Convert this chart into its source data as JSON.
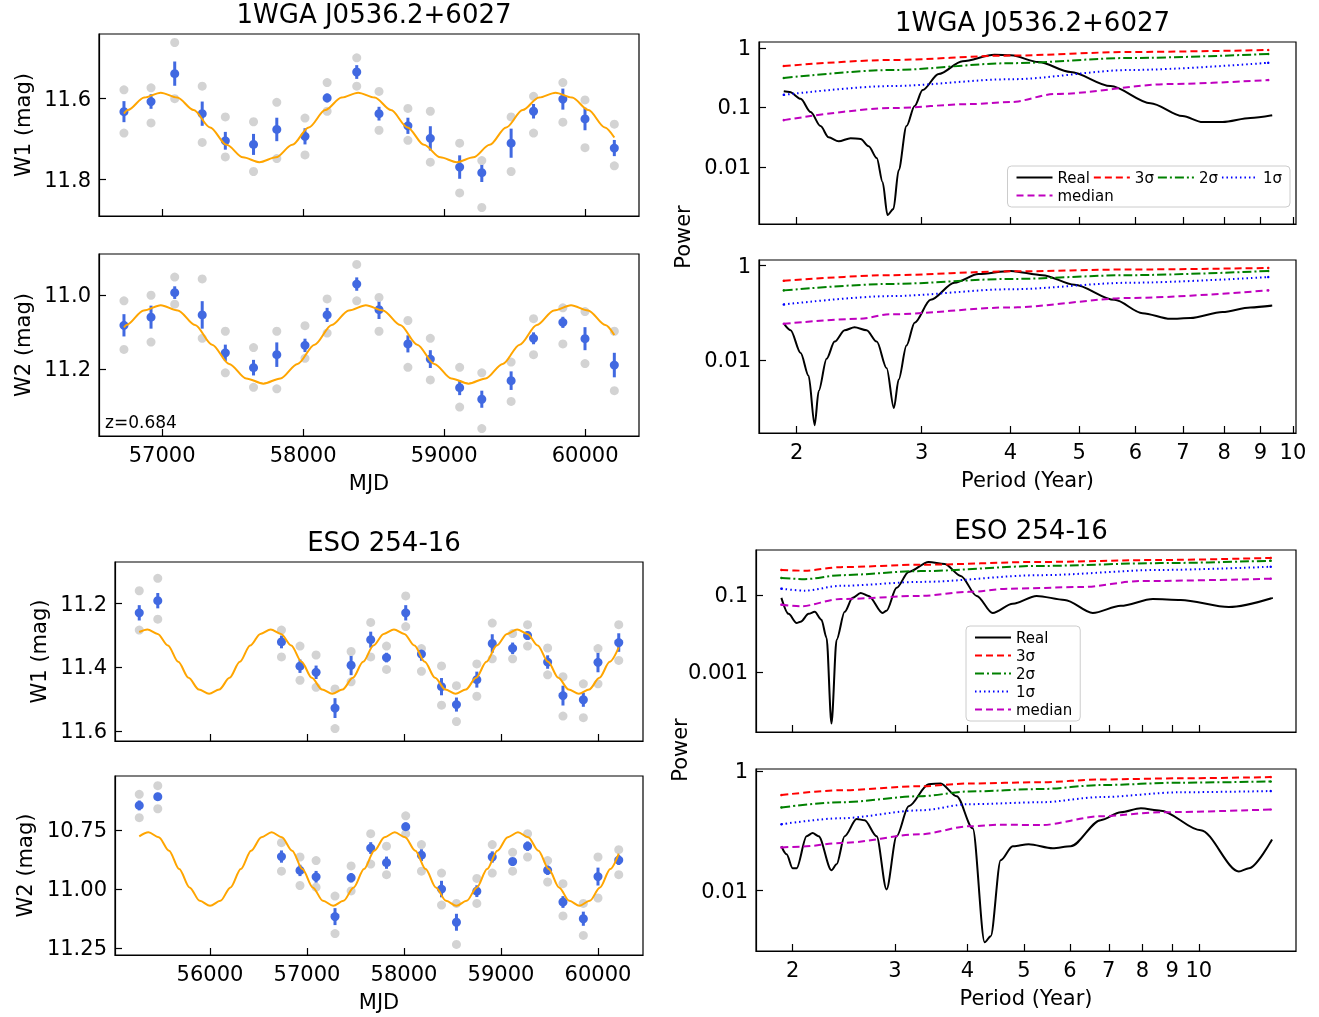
{
  "chart_data": [
    {
      "type": "scatter",
      "title": "1WGA J0536.2+6027",
      "ylabel": "W1 (mag)",
      "xlim": [
        56552,
        60382
      ],
      "ylim": [
        11.89,
        11.44
      ],
      "xticks": [
        57000,
        58000,
        59000,
        60000
      ],
      "yticks": [
        11.6,
        11.8
      ],
      "tick_labels": "y",
      "series": [
        {
          "color": "#d3d3d3",
          "marker": "circle",
          "x": [
            56729,
            56729,
            56921,
            56921,
            57089,
            57089,
            57284,
            57284,
            57448,
            57448,
            57648,
            57648,
            57813,
            57813,
            58013,
            58013,
            58170,
            58170,
            58380,
            58380,
            58538,
            58538,
            58743,
            58743,
            58902,
            58902,
            59110,
            59110,
            59267,
            59267,
            59475,
            59475,
            59634,
            59634,
            59842,
            59842,
            59999,
            59999,
            60207,
            60207
          ],
          "values": [
            11.578,
            11.685,
            11.573,
            11.66,
            11.461,
            11.6,
            11.569,
            11.708,
            11.645,
            11.744,
            11.657,
            11.78,
            11.609,
            11.748,
            11.648,
            11.739,
            11.56,
            11.631,
            11.499,
            11.569,
            11.582,
            11.678,
            11.624,
            11.703,
            11.631,
            11.757,
            11.71,
            11.833,
            11.753,
            11.869,
            11.645,
            11.78,
            11.594,
            11.685,
            11.56,
            11.658,
            11.603,
            11.721,
            11.663,
            11.766
          ]
        },
        {
          "type": "line",
          "color": "#ffa500",
          "marker": "none",
          "line_style": "solid",
          "x": [
            56729,
            56757,
            56873,
            56990,
            57107,
            57223,
            57340,
            57457,
            57573,
            57690,
            57807,
            57923,
            58040,
            58157,
            58273,
            58390,
            58507,
            58623,
            58740,
            58857,
            58973,
            59090,
            59207,
            59323,
            59440,
            59557,
            59673,
            59790,
            59907,
            60023,
            60140,
            60207
          ],
          "values": [
            11.637,
            11.628,
            11.597,
            11.585,
            11.597,
            11.628,
            11.671,
            11.714,
            11.745,
            11.757,
            11.745,
            11.714,
            11.671,
            11.628,
            11.597,
            11.585,
            11.597,
            11.628,
            11.671,
            11.714,
            11.745,
            11.757,
            11.745,
            11.714,
            11.671,
            11.628,
            11.597,
            11.585,
            11.597,
            11.628,
            11.671,
            11.696
          ]
        },
        {
          "color": "#4169e1",
          "marker": "circle",
          "x": [
            56729,
            56921,
            57089,
            57284,
            57448,
            57648,
            57813,
            58013,
            58170,
            58380,
            58538,
            58743,
            58902,
            59110,
            59267,
            59475,
            59634,
            59842,
            59999,
            60207
          ],
          "values": [
            11.632,
            11.607,
            11.538,
            11.637,
            11.704,
            11.713,
            11.676,
            11.693,
            11.598,
            11.534,
            11.637,
            11.667,
            11.698,
            11.769,
            11.783,
            11.71,
            11.631,
            11.601,
            11.65,
            11.722
          ],
          "errors": [
            0.026,
            0.018,
            0.03,
            0.03,
            0.022,
            0.026,
            0.029,
            0.02,
            0.011,
            0.017,
            0.017,
            0.02,
            0.03,
            0.029,
            0.023,
            0.036,
            0.018,
            0.026,
            0.028,
            0.02
          ]
        }
      ]
    },
    {
      "type": "line",
      "title": "1WGA J0536.2+6027",
      "log": "xy",
      "xlim": [
        1.77,
        10.1
      ],
      "ylim": [
        0.0011,
        1.26
      ],
      "xticks": [
        2,
        3,
        4,
        5,
        6,
        7,
        8,
        9,
        10
      ],
      "yticks": [
        0.01,
        0.1,
        1
      ],
      "tick_labels": "y",
      "legend": "bottom right",
      "series": [
        {
          "name": "Real",
          "color": "#000000",
          "marker": "none",
          "line_style": "solid",
          "x": [
            1.918,
            1.956,
            2.026,
            2.093,
            2.161,
            2.218,
            2.292,
            2.382,
            2.461,
            2.526,
            2.593,
            2.643,
            2.685,
            2.737,
            2.784,
            2.856,
            2.932,
            3.009,
            3.17,
            3.425,
            3.799,
            4.002,
            4.381,
            4.861,
            5.534,
            6.3,
            6.99,
            7.46,
            7.96,
            8.71,
            9.35
          ],
          "values": [
            0.187,
            0.182,
            0.14,
            0.0837,
            0.0486,
            0.0315,
            0.027,
            0.0305,
            0.0296,
            0.0224,
            0.0141,
            0.00555,
            0.00156,
            0.00196,
            0.00883,
            0.0486,
            0.1056,
            0.196,
            0.365,
            0.6,
            0.769,
            0.757,
            0.581,
            0.394,
            0.229,
            0.118,
            0.0717,
            0.0568,
            0.0568,
            0.0663,
            0.0739
          ]
        },
        {
          "name": "3σ",
          "color": "#ff0000",
          "marker": "none",
          "line_style": "dashed",
          "x": [
            1.918,
            2.713,
            4.0,
            5.9,
            9.23
          ],
          "values": [
            0.498,
            0.628,
            0.745,
            0.857,
            0.925
          ]
        },
        {
          "name": "2σ",
          "color": "#008000",
          "marker": "none",
          "line_style": "dashdot",
          "x": [
            1.918,
            2.713,
            4.0,
            5.9,
            9.23
          ],
          "values": [
            0.313,
            0.426,
            0.555,
            0.679,
            0.792
          ]
        },
        {
          "name": "1σ",
          "color": "#0000ff",
          "marker": "none",
          "line_style": "dotted",
          "x": [
            1.918,
            2.713,
            4.0,
            5.9,
            9.23
          ],
          "values": [
            0.163,
            0.229,
            0.298,
            0.426,
            0.563
          ]
        },
        {
          "name": "median",
          "color": "#bf00bf",
          "marker": "none",
          "line_style": "dashed",
          "x": [
            1.918,
            2.713,
            3.516,
            4.0,
            4.623,
            6.72,
            9.23
          ],
          "values": [
            0.0613,
            0.0977,
            0.114,
            0.123,
            0.168,
            0.248,
            0.289
          ]
        }
      ]
    },
    {
      "type": "scatter",
      "xlabel": "MJD",
      "ylabel": "W2 (mag)",
      "xlim": [
        56552,
        60382
      ],
      "ylim": [
        11.38,
        10.89
      ],
      "xticks": [
        57000,
        58000,
        59000,
        60000
      ],
      "yticks": [
        {
          "value": 11,
          "label": "11.0"
        },
        11.2
      ],
      "annotations": [
        "z=0.684"
      ],
      "series": [
        {
          "color": "#d3d3d3",
          "marker": "circle",
          "x": [
            56729,
            56729,
            56921,
            56921,
            57089,
            57089,
            57284,
            57284,
            57448,
            57448,
            57648,
            57648,
            57813,
            57813,
            58013,
            58013,
            58170,
            58170,
            58380,
            58380,
            58538,
            58538,
            58743,
            58743,
            58902,
            58902,
            59110,
            59110,
            59267,
            59267,
            59475,
            59475,
            59634,
            59634,
            59842,
            59842,
            59999,
            59999,
            60207,
            60207
          ],
          "values": [
            11.016,
            11.147,
            11.001,
            11.127,
            10.952,
            11.025,
            10.957,
            11.117,
            11.098,
            11.21,
            11.142,
            11.249,
            11.098,
            11.253,
            11.083,
            11.171,
            11.011,
            11.103,
            10.918,
            11.016,
            11.007,
            11.098,
            11.069,
            11.195,
            11.117,
            11.229,
            11.195,
            11.302,
            11.21,
            11.36,
            11.181,
            11.287,
            11.064,
            11.161,
            11.035,
            11.132,
            11.045,
            11.185,
            11.098,
            11.258
          ]
        },
        {
          "type": "line",
          "color": "#ffa500",
          "marker": "none",
          "line_style": "solid",
          "x": [
            56729,
            56747,
            56869,
            56990,
            57111,
            57233,
            57354,
            57475,
            57596,
            57718,
            57839,
            57960,
            58081,
            58203,
            58324,
            58445,
            58566,
            58688,
            58809,
            58930,
            59051,
            59173,
            59294,
            59415,
            59536,
            59658,
            59779,
            59900,
            60021,
            60143,
            60207
          ],
          "values": [
            11.088,
            11.081,
            11.042,
            11.028,
            11.042,
            11.081,
            11.134,
            11.186,
            11.225,
            11.239,
            11.225,
            11.186,
            11.134,
            11.081,
            11.042,
            11.028,
            11.042,
            11.081,
            11.134,
            11.186,
            11.225,
            11.239,
            11.225,
            11.186,
            11.134,
            11.081,
            11.042,
            11.028,
            11.042,
            11.081,
            11.108
          ]
        },
        {
          "color": "#4169e1",
          "marker": "circle",
          "x": [
            56729,
            56921,
            57089,
            57284,
            57448,
            57648,
            57813,
            58013,
            58170,
            58380,
            58538,
            58743,
            58902,
            59110,
            59267,
            59475,
            59634,
            59842,
            59999,
            60207
          ],
          "values": [
            11.082,
            11.06,
            10.994,
            11.054,
            11.156,
            11.196,
            11.161,
            11.136,
            11.054,
            10.971,
            11.04,
            11.132,
            11.173,
            11.25,
            11.281,
            11.231,
            11.117,
            11.074,
            11.118,
            11.189
          ],
          "errors": [
            0.03,
            0.031,
            0.017,
            0.037,
            0.022,
            0.021,
            0.033,
            0.018,
            0.019,
            0.018,
            0.025,
            0.023,
            0.024,
            0.02,
            0.023,
            0.025,
            0.016,
            0.015,
            0.031,
            0.033
          ]
        }
      ]
    },
    {
      "type": "line",
      "xlabel": "Period (Year)",
      "ylabel": "Power",
      "log": "xy",
      "xlim": [
        1.77,
        10.1
      ],
      "ylim": [
        0.00028,
        1.32
      ],
      "xticks": [
        2,
        3,
        4,
        5,
        6,
        7,
        8,
        9,
        10
      ],
      "yticks": [
        0.01,
        1
      ],
      "series": [
        {
          "color": "#000000",
          "marker": "none",
          "line_style": "solid",
          "x": [
            1.918,
            1.961,
            2.026,
            2.079,
            2.12,
            2.148,
            2.204,
            2.262,
            2.337,
            2.413,
            2.509,
            2.593,
            2.678,
            2.741,
            2.784,
            2.856,
            2.932,
            3.088,
            3.337,
            3.607,
            4.002,
            4.438,
            4.924,
            5.606,
            6.14,
            6.72,
            7.17,
            7.96,
            8.71,
            9.35
          ],
          "values": [
            0.0594,
            0.0426,
            0.01397,
            0.00458,
            0.00041,
            0.00218,
            0.01057,
            0.0244,
            0.0426,
            0.0494,
            0.0426,
            0.0244,
            0.00665,
            0.000946,
            0.00381,
            0.0202,
            0.0617,
            0.188,
            0.434,
            0.665,
            0.771,
            0.629,
            0.395,
            0.188,
            0.0982,
            0.0743,
            0.0771,
            0.1038,
            0.13,
            0.142
          ]
        },
        {
          "color": "#ff0000",
          "marker": "none",
          "line_style": "dashed",
          "x": [
            1.918,
            2.713,
            4.002,
            5.9,
            9.23
          ],
          "values": [
            0.476,
            0.629,
            0.757,
            0.83,
            0.895
          ]
        },
        {
          "color": "#008000",
          "marker": "none",
          "line_style": "dashdot",
          "x": [
            1.918,
            2.713,
            4.002,
            5.9,
            9.23
          ],
          "values": [
            0.299,
            0.41,
            0.522,
            0.629,
            0.771
          ]
        },
        {
          "color": "#0000ff",
          "marker": "none",
          "line_style": "dotted",
          "x": [
            1.918,
            2.713,
            4.002,
            5.9,
            9.23
          ],
          "values": [
            0.15,
            0.226,
            0.316,
            0.434,
            0.573
          ]
        },
        {
          "color": "#bf00bf",
          "marker": "none",
          "line_style": "dashed",
          "x": [
            1.918,
            2.445,
            2.713,
            4.002,
            5.9,
            9.23
          ],
          "values": [
            0.0583,
            0.0743,
            0.0929,
            0.13,
            0.206,
            0.299
          ]
        }
      ]
    },
    {
      "type": "scatter",
      "title": "ESO 254-16",
      "ylabel": "W1 (mag)",
      "xlim": [
        55021,
        60464
      ],
      "ylim": [
        11.63,
        11.07
      ],
      "xticks": [
        56000,
        57000,
        58000,
        59000,
        60000
      ],
      "yticks": [
        11.2,
        11.4,
        11.6
      ],
      "tick_labels": "y",
      "series": [
        {
          "color": "#d3d3d3",
          "marker": "circle",
          "x": [
            55271,
            55271,
            55462,
            55462,
            56737,
            56737,
            56928,
            56928,
            57094,
            57094,
            57289,
            57289,
            57455,
            57455,
            57657,
            57657,
            57820,
            57820,
            58018,
            58018,
            58180,
            58180,
            58387,
            58387,
            58541,
            58541,
            58751,
            58751,
            58910,
            58910,
            59120,
            59120,
            59274,
            59274,
            59481,
            59481,
            59639,
            59639,
            59849,
            59849,
            60000,
            60000,
            60214,
            60214
          ],
          "values": [
            11.16,
            11.283,
            11.121,
            11.249,
            11.283,
            11.367,
            11.333,
            11.44,
            11.361,
            11.462,
            11.467,
            11.591,
            11.35,
            11.445,
            11.259,
            11.367,
            11.333,
            11.406,
            11.176,
            11.272,
            11.341,
            11.412,
            11.395,
            11.518,
            11.457,
            11.569,
            11.389,
            11.49,
            11.261,
            11.373,
            11.294,
            11.373,
            11.266,
            11.333,
            11.339,
            11.423,
            11.429,
            11.552,
            11.451,
            11.557,
            11.341,
            11.451,
            11.266,
            11.378
          ]
        },
        {
          "type": "line",
          "color": "#ffa500",
          "marker": "none",
          "line_style": "solid",
          "x": [
            55271,
            55355,
            55461,
            55567,
            55673,
            55779,
            55885,
            55991,
            56096,
            56202,
            56308,
            56414,
            56520,
            56626,
            56732,
            56838,
            56944,
            57049,
            57155,
            57261,
            57367,
            57473,
            57579,
            57685,
            57791,
            57897,
            58003,
            58108,
            58214,
            58320,
            58426,
            58532,
            58638,
            58744,
            58850,
            58956,
            59062,
            59167,
            59273,
            59379,
            59485,
            59591,
            59697,
            59803,
            59909,
            60015,
            60121,
            60214
          ],
          "values": [
            11.289,
            11.281,
            11.295,
            11.331,
            11.382,
            11.432,
            11.469,
            11.482,
            11.469,
            11.432,
            11.382,
            11.331,
            11.295,
            11.281,
            11.295,
            11.331,
            11.382,
            11.432,
            11.469,
            11.482,
            11.469,
            11.432,
            11.382,
            11.331,
            11.295,
            11.281,
            11.295,
            11.331,
            11.382,
            11.432,
            11.469,
            11.482,
            11.469,
            11.432,
            11.382,
            11.331,
            11.295,
            11.281,
            11.295,
            11.331,
            11.382,
            11.432,
            11.469,
            11.482,
            11.469,
            11.432,
            11.382,
            11.337
          ]
        },
        {
          "color": "#4169e1",
          "marker": "circle",
          "x": [
            55271,
            55462,
            56737,
            56928,
            57094,
            57289,
            57455,
            57657,
            57820,
            58018,
            58180,
            58387,
            58541,
            58751,
            58910,
            59120,
            59274,
            59481,
            59639,
            59849,
            60000,
            60214
          ],
          "values": [
            11.229,
            11.191,
            11.32,
            11.396,
            11.415,
            11.527,
            11.393,
            11.313,
            11.369,
            11.229,
            11.358,
            11.46,
            11.516,
            11.438,
            11.325,
            11.34,
            11.3,
            11.383,
            11.488,
            11.501,
            11.384,
            11.322
          ],
          "errors": [
            0.024,
            0.024,
            0.02,
            0.021,
            0.021,
            0.031,
            0.031,
            0.025,
            0.015,
            0.024,
            0.021,
            0.027,
            0.022,
            0.025,
            0.029,
            0.018,
            0.013,
            0.021,
            0.031,
            0.022,
            0.031,
            0.029
          ]
        }
      ]
    },
    {
      "type": "line",
      "title": "ESO 254-16",
      "log": "xy",
      "xlim": [
        1.73,
        14.7
      ],
      "ylim": [
        2.9e-05,
        1.46
      ],
      "xticks": [
        2,
        3,
        4,
        5,
        6,
        7,
        8,
        9,
        10
      ],
      "yticks": [
        0.001,
        0.1
      ],
      "tick_labels": "y",
      "legend": "bottom",
      "series": [
        {
          "name": "Real",
          "color": "#000000",
          "marker": "none",
          "line_style": "solid",
          "x": [
            1.913,
            1.968,
            2.032,
            2.064,
            2.131,
            2.183,
            2.242,
            2.288,
            2.333,
            2.381,
            2.458,
            2.537,
            2.619,
            2.703,
            2.858,
            2.902,
            3.02,
            3.168,
            3.429,
            3.654,
            3.894,
            4.148,
            4.419,
            4.784,
            5.26,
            5.88,
            6.57,
            7.34,
            8.34,
            9.31,
            11.27,
            13.41
          ],
          "values": [
            0.0847,
            0.0327,
            0.019,
            0.0204,
            0.0327,
            0.0369,
            0.023,
            0.00789,
            4.79e-05,
            0.007,
            0.0369,
            0.0847,
            0.1127,
            0.0953,
            0.0344,
            0.0396,
            0.1535,
            0.396,
            0.718,
            0.637,
            0.313,
            0.0953,
            0.0344,
            0.0593,
            0.0953,
            0.0751,
            0.0344,
            0.0527,
            0.0789,
            0.0751,
            0.0491,
            0.0847
          ]
        },
        {
          "name": "3σ",
          "color": "#ff0000",
          "marker": "none",
          "line_style": "dashed",
          "x": [
            1.913,
            2.098,
            2.419,
            3.322,
            5.35,
            8.6,
            13.3
          ],
          "values": [
            0.446,
            0.426,
            0.527,
            0.608,
            0.718,
            0.807,
            0.91
          ]
        },
        {
          "name": "2σ",
          "color": "#008000",
          "marker": "none",
          "line_style": "dashdot",
          "x": [
            1.913,
            2.098,
            2.419,
            3.322,
            5.35,
            8.6,
            13.3
          ],
          "values": [
            0.277,
            0.258,
            0.327,
            0.416,
            0.566,
            0.669,
            0.771
          ]
        },
        {
          "name": "1σ",
          "color": "#0000ff",
          "marker": "none",
          "line_style": "dotted",
          "x": [
            1.913,
            2.098,
            2.419,
            3.322,
            5.35,
            8.6,
            13.3
          ],
          "values": [
            0.146,
            0.13,
            0.173,
            0.219,
            0.327,
            0.446,
            0.539
          ]
        },
        {
          "name": "median",
          "color": "#bf00bf",
          "marker": "none",
          "line_style": "dashed",
          "x": [
            1.913,
            2.064,
            2.419,
            3.322,
            4.02,
            4.71,
            6.27,
            7.95,
            13.3
          ],
          "values": [
            0.0566,
            0.0514,
            0.0789,
            0.0953,
            0.121,
            0.146,
            0.161,
            0.23,
            0.265
          ]
        }
      ]
    },
    {
      "type": "scatter",
      "xlabel": "MJD",
      "ylabel": "W2 (mag)",
      "xlim": [
        55021,
        60464
      ],
      "ylim": [
        11.28,
        10.52
      ],
      "xticks": [
        56000,
        57000,
        58000,
        59000,
        60000
      ],
      "yticks": [
        10.75,
        {
          "value": 11,
          "label": "11.00"
        },
        11.25
      ],
      "series": [
        {
          "color": "#d3d3d3",
          "marker": "circle",
          "x": [
            55271,
            55271,
            55462,
            55462,
            56737,
            56737,
            56928,
            56928,
            57094,
            57094,
            57289,
            57289,
            57455,
            57455,
            57657,
            57657,
            57820,
            57820,
            58018,
            58018,
            58180,
            58180,
            58387,
            58387,
            58541,
            58541,
            58751,
            58751,
            58910,
            58910,
            59120,
            59120,
            59274,
            59274,
            59481,
            59481,
            59639,
            59639,
            59849,
            59849,
            60000,
            60000,
            60214,
            60214
          ],
          "values": [
            10.598,
            10.697,
            10.561,
            10.659,
            10.803,
            10.924,
            10.864,
            10.985,
            10.879,
            10.992,
            11.03,
            11.189,
            10.902,
            11.008,
            10.765,
            10.894,
            10.818,
            10.939,
            10.689,
            10.765,
            10.811,
            10.924,
            10.932,
            11.068,
            11.061,
            11.235,
            10.955,
            11.061,
            10.811,
            10.932,
            10.844,
            10.924,
            10.765,
            10.864,
            10.879,
            10.97,
            10.977,
            11.114,
            11.061,
            11.197,
            10.864,
            11.038,
            10.833,
            10.939
          ]
        },
        {
          "type": "line",
          "color": "#ffa500",
          "marker": "none",
          "line_style": "solid",
          "x": [
            55271,
            55366,
            55472,
            55578,
            55683,
            55789,
            55895,
            56001,
            56107,
            56212,
            56318,
            56424,
            56530,
            56636,
            56741,
            56847,
            56953,
            57059,
            57165,
            57270,
            57376,
            57482,
            57588,
            57694,
            57799,
            57905,
            58011,
            58117,
            58223,
            58328,
            58434,
            58540,
            58646,
            58752,
            58857,
            58963,
            59069,
            59175,
            59281,
            59386,
            59492,
            59598,
            59704,
            59810,
            59915,
            60021,
            60127,
            60214
          ],
          "values": [
            10.776,
            10.759,
            10.78,
            10.837,
            10.915,
            10.993,
            11.05,
            11.071,
            11.05,
            10.993,
            10.915,
            10.837,
            10.78,
            10.759,
            10.78,
            10.837,
            10.915,
            10.993,
            11.05,
            11.071,
            11.05,
            10.993,
            10.915,
            10.837,
            10.78,
            10.759,
            10.78,
            10.837,
            10.915,
            10.993,
            11.05,
            11.071,
            11.05,
            10.993,
            10.915,
            10.837,
            10.78,
            10.759,
            10.78,
            10.837,
            10.915,
            10.993,
            11.05,
            11.071,
            11.05,
            10.993,
            10.915,
            10.85
          ]
        },
        {
          "color": "#4169e1",
          "marker": "circle",
          "x": [
            55271,
            55462,
            56737,
            56928,
            57094,
            57289,
            57455,
            57657,
            57820,
            58018,
            58180,
            58387,
            58541,
            58751,
            58910,
            59120,
            59274,
            59481,
            59639,
            59849,
            60000,
            60214
          ],
          "values": [
            10.645,
            10.608,
            10.862,
            10.921,
            10.948,
            11.117,
            10.952,
            10.826,
            10.888,
            10.735,
            10.856,
            11.0,
            11.141,
            11.009,
            10.864,
            10.883,
            10.818,
            10.92,
            11.055,
            11.126,
            10.947,
            10.877
          ],
          "errors": [
            0.021,
            0.017,
            0.026,
            0.024,
            0.025,
            0.036,
            0.02,
            0.025,
            0.026,
            0.018,
            0.025,
            0.035,
            0.036,
            0.025,
            0.024,
            0.015,
            0.02,
            0.02,
            0.025,
            0.03,
            0.038,
            0.021
          ]
        }
      ]
    },
    {
      "type": "line",
      "xlabel": "Period (Year)",
      "ylabel": "Power",
      "log": "xy",
      "xlim": [
        1.73,
        14.7
      ],
      "ylim": [
        0.00097,
        1.1
      ],
      "xticks": [
        2,
        3,
        4,
        5,
        6,
        7,
        8,
        9,
        10
      ],
      "yticks": [
        0.01,
        1
      ],
      "series": [
        {
          "color": "#000000",
          "marker": "none",
          "line_style": "solid",
          "x": [
            1.913,
            1.953,
            2.0,
            2.032,
            2.114,
            2.165,
            2.217,
            2.333,
            2.381,
            2.458,
            2.578,
            2.661,
            2.79,
            2.902,
            3.02,
            3.168,
            3.429,
            3.596,
            3.832,
            4.083,
            4.281,
            4.385,
            4.561,
            4.784,
            5.096,
            5.606,
            6.02,
            6.78,
            7.34,
            7.95,
            8.6,
            10.08,
            11.72,
            12.2,
            13.37
          ],
          "values": [
            0.0556,
            0.0408,
            0.0238,
            0.0238,
            0.0818,
            0.0925,
            0.0818,
            0.022,
            0.0277,
            0.0818,
            0.159,
            0.152,
            0.0818,
            0.01047,
            0.0818,
            0.261,
            0.61,
            0.629,
            0.384,
            0.1114,
            0.00136,
            0.00172,
            0.0324,
            0.0556,
            0.0601,
            0.0514,
            0.0556,
            0.152,
            0.207,
            0.241,
            0.22,
            0.1031,
            0.021,
            0.0238,
            0.0723
          ]
        },
        {
          "color": "#ff0000",
          "marker": "none",
          "line_style": "dashed",
          "x": [
            1.913,
            2.419,
            3.322,
            4.02,
            5.35,
            6.78,
            9.31,
            13.3
          ],
          "values": [
            0.402,
            0.484,
            0.565,
            0.629,
            0.659,
            0.734,
            0.769,
            0.805
          ]
        },
        {
          "color": "#008000",
          "marker": "none",
          "line_style": "dashdot",
          "x": [
            1.913,
            2.419,
            3.322,
            4.02,
            5.35,
            6.78,
            9.31,
            13.3
          ],
          "values": [
            0.249,
            0.304,
            0.384,
            0.462,
            0.507,
            0.591,
            0.649,
            0.679
          ]
        },
        {
          "color": "#0000ff",
          "marker": "none",
          "line_style": "dotted",
          "x": [
            1.913,
            2.419,
            3.322,
            4.02,
            5.35,
            6.78,
            9.31,
            13.3
          ],
          "values": [
            0.13,
            0.164,
            0.223,
            0.282,
            0.304,
            0.372,
            0.448,
            0.469
          ]
        },
        {
          "color": "#bf00bf",
          "marker": "none",
          "line_style": "dashed",
          "x": [
            1.913,
            2.064,
            2.419,
            3.322,
            4.02,
            4.56,
            5.35,
            6.78,
            8.6,
            13.3
          ],
          "values": [
            0.0531,
            0.0547,
            0.0629,
            0.0883,
            0.12,
            0.128,
            0.126,
            0.177,
            0.207,
            0.23
          ]
        }
      ]
    }
  ]
}
